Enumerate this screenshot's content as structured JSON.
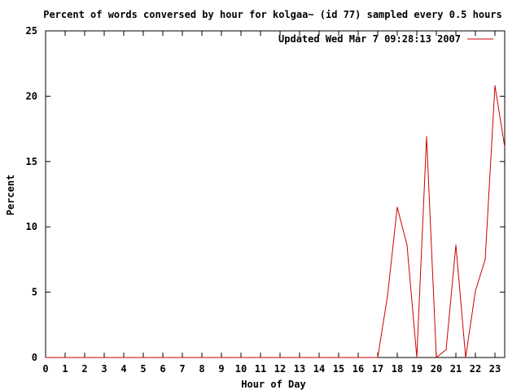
{
  "chart_data": {
    "type": "line",
    "title": "Percent of words conversed by hour for kolgaa~ (id 77) sampled every 0.5 hours",
    "xlabel": "Hour of Day",
    "ylabel": "Percent",
    "xlim": [
      0,
      23.5
    ],
    "ylim": [
      0,
      25
    ],
    "x_ticks": [
      "0",
      "1",
      "2",
      "3",
      "4",
      "5",
      "6",
      "7",
      "8",
      "9",
      "10",
      "11",
      "12",
      "13",
      "14",
      "15",
      "16",
      "17",
      "18",
      "19",
      "20",
      "21",
      "22",
      "23"
    ],
    "y_ticks": [
      "0",
      "5",
      "10",
      "15",
      "20",
      "25"
    ],
    "grid": false,
    "legend_position": "top-right",
    "series": [
      {
        "name": "Updated Wed Mar  7 09:28:13 2007",
        "color": "#cc0000",
        "x": [
          0,
          0.5,
          1,
          1.5,
          2,
          2.5,
          3,
          3.5,
          4,
          4.5,
          5,
          5.5,
          6,
          6.5,
          7,
          7.5,
          8,
          8.5,
          9,
          9.5,
          10,
          10.5,
          11,
          11.5,
          12,
          12.5,
          13,
          13.5,
          14,
          14.5,
          15,
          15.5,
          16,
          16.5,
          17,
          17.5,
          18,
          18.5,
          19,
          19.5,
          20,
          20.5,
          21,
          21.5,
          22,
          22.5,
          23,
          23.5
        ],
        "values": [
          0,
          0,
          0,
          0,
          0,
          0,
          0,
          0,
          0,
          0,
          0,
          0,
          0,
          0,
          0,
          0,
          0,
          0,
          0,
          0,
          0,
          0,
          0,
          0,
          0,
          0,
          0,
          0,
          0,
          0,
          0,
          0,
          0,
          0,
          0,
          4.7,
          11.5,
          8.6,
          0,
          16.9,
          0,
          0.6,
          8.6,
          0,
          5.1,
          7.5,
          20.8,
          16.1
        ]
      }
    ]
  }
}
